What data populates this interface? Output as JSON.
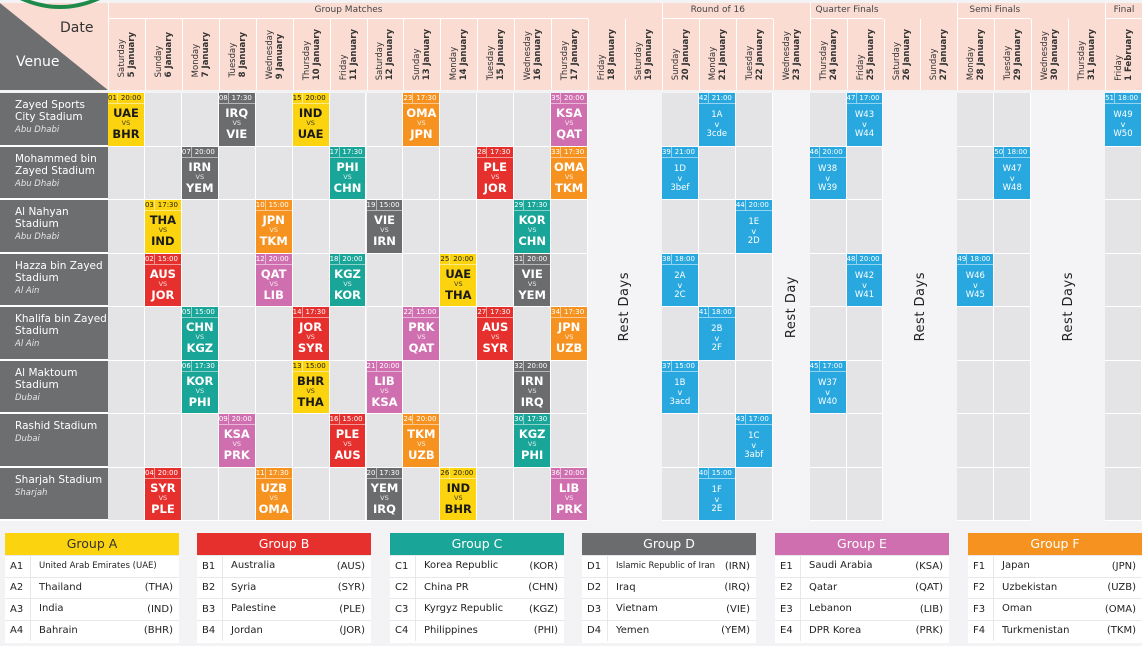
{
  "header": {
    "date_label": "Date",
    "venue_label": "Venue"
  },
  "colors": {
    "A": "#fbd40f",
    "B": "#e6302d",
    "C": "#19a597",
    "D": "#6b6c6e",
    "E": "#d06faf",
    "F": "#f6921f",
    "KO": "#29a8e0",
    "header_bg": "#fbdcd3",
    "venue_bg": "#6d6e70"
  },
  "stages": [
    {
      "label": "Group Matches",
      "from": 0,
      "to": 12
    },
    {
      "label": "Round of 16",
      "from": 15,
      "to": 17
    },
    {
      "label": "Quarter Finals",
      "from": 19,
      "to": 20
    },
    {
      "label": "Semi Finals",
      "from": 23,
      "to": 24
    },
    {
      "label": "Final",
      "from": 27,
      "to": 27
    }
  ],
  "days": [
    {
      "weekday": "Saturday",
      "date": "5 January"
    },
    {
      "weekday": "Sunday",
      "date": "6 January"
    },
    {
      "weekday": "Monday",
      "date": "7 January"
    },
    {
      "weekday": "Tuesday",
      "date": "8 January"
    },
    {
      "weekday": "Wednesday",
      "date": "9 January"
    },
    {
      "weekday": "Thursday",
      "date": "10 January"
    },
    {
      "weekday": "Friday",
      "date": "11 January"
    },
    {
      "weekday": "Saturday",
      "date": "12 January"
    },
    {
      "weekday": "Sunday",
      "date": "13 January"
    },
    {
      "weekday": "Monday",
      "date": "14 January"
    },
    {
      "weekday": "Tuesday",
      "date": "15 January"
    },
    {
      "weekday": "Wednesday",
      "date": "16 January"
    },
    {
      "weekday": "Thursday",
      "date": "17 January"
    },
    {
      "weekday": "Friday",
      "date": "18 January"
    },
    {
      "weekday": "Saturday",
      "date": "19 January"
    },
    {
      "weekday": "Sunday",
      "date": "20 January"
    },
    {
      "weekday": "Monday",
      "date": "21 January"
    },
    {
      "weekday": "Tuesday",
      "date": "22 January"
    },
    {
      "weekday": "Wednesday",
      "date": "23 January"
    },
    {
      "weekday": "Thursday",
      "date": "24 January"
    },
    {
      "weekday": "Friday",
      "date": "25 January"
    },
    {
      "weekday": "Saturday",
      "date": "26 January"
    },
    {
      "weekday": "Sunday",
      "date": "27 January"
    },
    {
      "weekday": "Monday",
      "date": "28 January"
    },
    {
      "weekday": "Tuesday",
      "date": "29 January"
    },
    {
      "weekday": "Wednesday",
      "date": "30 January"
    },
    {
      "weekday": "Thursday",
      "date": "31 January"
    },
    {
      "weekday": "Friday",
      "date": "1 February"
    }
  ],
  "rest_periods": [
    {
      "label": "Rest Days",
      "from": 13,
      "to": 14
    },
    {
      "label": "Rest Day",
      "from": 18,
      "to": 18
    },
    {
      "label": "Rest Days",
      "from": 21,
      "to": 22
    },
    {
      "label": "Rest Days",
      "from": 25,
      "to": 26
    }
  ],
  "venues": [
    {
      "name": "Zayed Sports City Stadium",
      "city": "Abu Dhabi"
    },
    {
      "name": "Mohammed bin Zayed Stadium",
      "city": "Abu Dhabi"
    },
    {
      "name": "Al Nahyan Stadium",
      "city": "Abu Dhabi"
    },
    {
      "name": "Hazza bin Zayed Stadium",
      "city": "Al Ain"
    },
    {
      "name": "Khalifa bin Zayed Stadium",
      "city": "Al Ain"
    },
    {
      "name": "Al Maktoum Stadium",
      "city": "Dubai"
    },
    {
      "name": "Rashid Stadium",
      "city": "Dubai"
    },
    {
      "name": "Sharjah Stadium",
      "city": "Sharjah"
    }
  ],
  "vs_label": "VS",
  "v_label": "v",
  "matches": [
    {
      "venue": 0,
      "day": 0,
      "no": "01",
      "time": "20:00",
      "home": "UAE",
      "away": "BHR",
      "group": "A"
    },
    {
      "venue": 0,
      "day": 3,
      "no": "08",
      "time": "17:30",
      "home": "IRQ",
      "away": "VIE",
      "group": "D"
    },
    {
      "venue": 0,
      "day": 5,
      "no": "15",
      "time": "20:00",
      "home": "IND",
      "away": "UAE",
      "group": "A"
    },
    {
      "venue": 0,
      "day": 8,
      "no": "23",
      "time": "17:30",
      "home": "OMA",
      "away": "JPN",
      "group": "F"
    },
    {
      "venue": 0,
      "day": 12,
      "no": "35",
      "time": "20:00",
      "home": "KSA",
      "away": "QAT",
      "group": "E"
    },
    {
      "venue": 0,
      "day": 16,
      "no": "42",
      "time": "21:00",
      "home": "1A",
      "away": "3cde",
      "group": "KO"
    },
    {
      "venue": 0,
      "day": 20,
      "no": "47",
      "time": "17:00",
      "home": "W43",
      "away": "W44",
      "group": "KO"
    },
    {
      "venue": 0,
      "day": 27,
      "no": "51",
      "time": "18:00",
      "home": "W49",
      "away": "W50",
      "group": "KO"
    },
    {
      "venue": 1,
      "day": 2,
      "no": "07",
      "time": "20:00",
      "home": "IRN",
      "away": "YEM",
      "group": "D"
    },
    {
      "venue": 1,
      "day": 6,
      "no": "17",
      "time": "17:30",
      "home": "PHI",
      "away": "CHN",
      "group": "C"
    },
    {
      "venue": 1,
      "day": 10,
      "no": "28",
      "time": "17:30",
      "home": "PLE",
      "away": "JOR",
      "group": "B"
    },
    {
      "venue": 1,
      "day": 12,
      "no": "33",
      "time": "17:30",
      "home": "OMA",
      "away": "TKM",
      "group": "F"
    },
    {
      "venue": 1,
      "day": 15,
      "no": "39",
      "time": "21:00",
      "home": "1D",
      "away": "3bef",
      "group": "KO"
    },
    {
      "venue": 1,
      "day": 19,
      "no": "46",
      "time": "20:00",
      "home": "W38",
      "away": "W39",
      "group": "KO"
    },
    {
      "venue": 1,
      "day": 24,
      "no": "50",
      "time": "18:00",
      "home": "W47",
      "away": "W48",
      "group": "KO"
    },
    {
      "venue": 2,
      "day": 1,
      "no": "03",
      "time": "17:30",
      "home": "THA",
      "away": "IND",
      "group": "A"
    },
    {
      "venue": 2,
      "day": 4,
      "no": "10",
      "time": "15:00",
      "home": "JPN",
      "away": "TKM",
      "group": "F"
    },
    {
      "venue": 2,
      "day": 7,
      "no": "19",
      "time": "15:00",
      "home": "VIE",
      "away": "IRN",
      "group": "D"
    },
    {
      "venue": 2,
      "day": 11,
      "no": "29",
      "time": "17:30",
      "home": "KOR",
      "away": "CHN",
      "group": "C"
    },
    {
      "venue": 2,
      "day": 17,
      "no": "44",
      "time": "20:00",
      "home": "1E",
      "away": "2D",
      "group": "KO"
    },
    {
      "venue": 3,
      "day": 1,
      "no": "02",
      "time": "15:00",
      "home": "AUS",
      "away": "JOR",
      "group": "B"
    },
    {
      "venue": 3,
      "day": 4,
      "no": "12",
      "time": "20:00",
      "home": "QAT",
      "away": "LIB",
      "group": "E"
    },
    {
      "venue": 3,
      "day": 6,
      "no": "18",
      "time": "20:00",
      "home": "KGZ",
      "away": "KOR",
      "group": "C"
    },
    {
      "venue": 3,
      "day": 9,
      "no": "25",
      "time": "20:00",
      "home": "UAE",
      "away": "THA",
      "group": "A"
    },
    {
      "venue": 3,
      "day": 11,
      "no": "31",
      "time": "20:00",
      "home": "VIE",
      "away": "YEM",
      "group": "D"
    },
    {
      "venue": 3,
      "day": 15,
      "no": "38",
      "time": "18:00",
      "home": "2A",
      "away": "2C",
      "group": "KO"
    },
    {
      "venue": 3,
      "day": 20,
      "no": "48",
      "time": "20:00",
      "home": "W42",
      "away": "W41",
      "group": "KO"
    },
    {
      "venue": 3,
      "day": 23,
      "no": "49",
      "time": "18:00",
      "home": "W46",
      "away": "W45",
      "group": "KO"
    },
    {
      "venue": 4,
      "day": 2,
      "no": "05",
      "time": "15:00",
      "home": "CHN",
      "away": "KGZ",
      "group": "C"
    },
    {
      "venue": 4,
      "day": 5,
      "no": "14",
      "time": "17:30",
      "home": "JOR",
      "away": "SYR",
      "group": "B"
    },
    {
      "venue": 4,
      "day": 8,
      "no": "22",
      "time": "15:00",
      "home": "PRK",
      "away": "QAT",
      "group": "E"
    },
    {
      "venue": 4,
      "day": 10,
      "no": "27",
      "time": "17:30",
      "home": "AUS",
      "away": "SYR",
      "group": "B"
    },
    {
      "venue": 4,
      "day": 12,
      "no": "34",
      "time": "17:30",
      "home": "JPN",
      "away": "UZB",
      "group": "F"
    },
    {
      "venue": 4,
      "day": 16,
      "no": "41",
      "time": "18:00",
      "home": "2B",
      "away": "2F",
      "group": "KO"
    },
    {
      "venue": 5,
      "day": 2,
      "no": "06",
      "time": "17:30",
      "home": "KOR",
      "away": "PHI",
      "group": "C"
    },
    {
      "venue": 5,
      "day": 5,
      "no": "13",
      "time": "15:00",
      "home": "BHR",
      "away": "THA",
      "group": "A"
    },
    {
      "venue": 5,
      "day": 7,
      "no": "21",
      "time": "20:00",
      "home": "LIB",
      "away": "KSA",
      "group": "E"
    },
    {
      "venue": 5,
      "day": 11,
      "no": "32",
      "time": "20:00",
      "home": "IRN",
      "away": "IRQ",
      "group": "D"
    },
    {
      "venue": 5,
      "day": 15,
      "no": "37",
      "time": "15:00",
      "home": "1B",
      "away": "3acd",
      "group": "KO"
    },
    {
      "venue": 5,
      "day": 19,
      "no": "45",
      "time": "17:00",
      "home": "W37",
      "away": "W40",
      "group": "KO"
    },
    {
      "venue": 6,
      "day": 3,
      "no": "09",
      "time": "20:00",
      "home": "KSA",
      "away": "PRK",
      "group": "E"
    },
    {
      "venue": 6,
      "day": 6,
      "no": "16",
      "time": "15:00",
      "home": "PLE",
      "away": "AUS",
      "group": "B"
    },
    {
      "venue": 6,
      "day": 8,
      "no": "24",
      "time": "20:00",
      "home": "TKM",
      "away": "UZB",
      "group": "F"
    },
    {
      "venue": 6,
      "day": 11,
      "no": "30",
      "time": "17:30",
      "home": "KGZ",
      "away": "PHI",
      "group": "C"
    },
    {
      "venue": 6,
      "day": 17,
      "no": "43",
      "time": "17:00",
      "home": "1C",
      "away": "3abf",
      "group": "KO"
    },
    {
      "venue": 7,
      "day": 1,
      "no": "04",
      "time": "20:00",
      "home": "SYR",
      "away": "PLE",
      "group": "B"
    },
    {
      "venue": 7,
      "day": 4,
      "no": "11",
      "time": "17:30",
      "home": "UZB",
      "away": "OMA",
      "group": "F"
    },
    {
      "venue": 7,
      "day": 7,
      "no": "20",
      "time": "17:30",
      "home": "YEM",
      "away": "IRQ",
      "group": "D"
    },
    {
      "venue": 7,
      "day": 9,
      "no": "26",
      "time": "20:00",
      "home": "IND",
      "away": "BHR",
      "group": "A"
    },
    {
      "venue": 7,
      "day": 12,
      "no": "36",
      "time": "20:00",
      "home": "LIB",
      "away": "PRK",
      "group": "E"
    },
    {
      "venue": 7,
      "day": 16,
      "no": "40",
      "time": "15:00",
      "home": "1F",
      "away": "2E",
      "group": "KO"
    }
  ],
  "groups": [
    {
      "key": "A",
      "title": "Group A",
      "teams": [
        {
          "code": "A1",
          "name": "United Arab Emirates (UAE)",
          "abbr": ""
        },
        {
          "code": "A2",
          "name": "Thailand",
          "abbr": "(THA)"
        },
        {
          "code": "A3",
          "name": "India",
          "abbr": "(IND)"
        },
        {
          "code": "A4",
          "name": "Bahrain",
          "abbr": "(BHR)"
        }
      ]
    },
    {
      "key": "B",
      "title": "Group B",
      "teams": [
        {
          "code": "B1",
          "name": "Australia",
          "abbr": "(AUS)"
        },
        {
          "code": "B2",
          "name": "Syria",
          "abbr": "(SYR)"
        },
        {
          "code": "B3",
          "name": "Palestine",
          "abbr": "(PLE)"
        },
        {
          "code": "B4",
          "name": "Jordan",
          "abbr": "(JOR)"
        }
      ]
    },
    {
      "key": "C",
      "title": "Group C",
      "teams": [
        {
          "code": "C1",
          "name": "Korea Republic",
          "abbr": "(KOR)"
        },
        {
          "code": "C2",
          "name": "China PR",
          "abbr": "(CHN)"
        },
        {
          "code": "C3",
          "name": "Kyrgyz Republic",
          "abbr": "(KGZ)"
        },
        {
          "code": "C4",
          "name": "Philippines",
          "abbr": "(PHI)"
        }
      ]
    },
    {
      "key": "D",
      "title": "Group D",
      "teams": [
        {
          "code": "D1",
          "name": "Islamic Republic of Iran",
          "abbr": "(IRN)"
        },
        {
          "code": "D2",
          "name": "Iraq",
          "abbr": "(IRQ)"
        },
        {
          "code": "D3",
          "name": "Vietnam",
          "abbr": "(VIE)"
        },
        {
          "code": "D4",
          "name": "Yemen",
          "abbr": "(YEM)"
        }
      ]
    },
    {
      "key": "E",
      "title": "Group E",
      "teams": [
        {
          "code": "E1",
          "name": "Saudi Arabia",
          "abbr": "(KSA)"
        },
        {
          "code": "E2",
          "name": "Qatar",
          "abbr": "(QAT)"
        },
        {
          "code": "E3",
          "name": "Lebanon",
          "abbr": "(LIB)"
        },
        {
          "code": "E4",
          "name": "DPR Korea",
          "abbr": "(PRK)"
        }
      ]
    },
    {
      "key": "F",
      "title": "Group F",
      "teams": [
        {
          "code": "F1",
          "name": "Japan",
          "abbr": "(JPN)"
        },
        {
          "code": "F2",
          "name": "Uzbekistan",
          "abbr": "(UZB)"
        },
        {
          "code": "F3",
          "name": "Oman",
          "abbr": "(OMA)"
        },
        {
          "code": "F4",
          "name": "Turkmenistan",
          "abbr": "(TKM)"
        }
      ]
    }
  ]
}
